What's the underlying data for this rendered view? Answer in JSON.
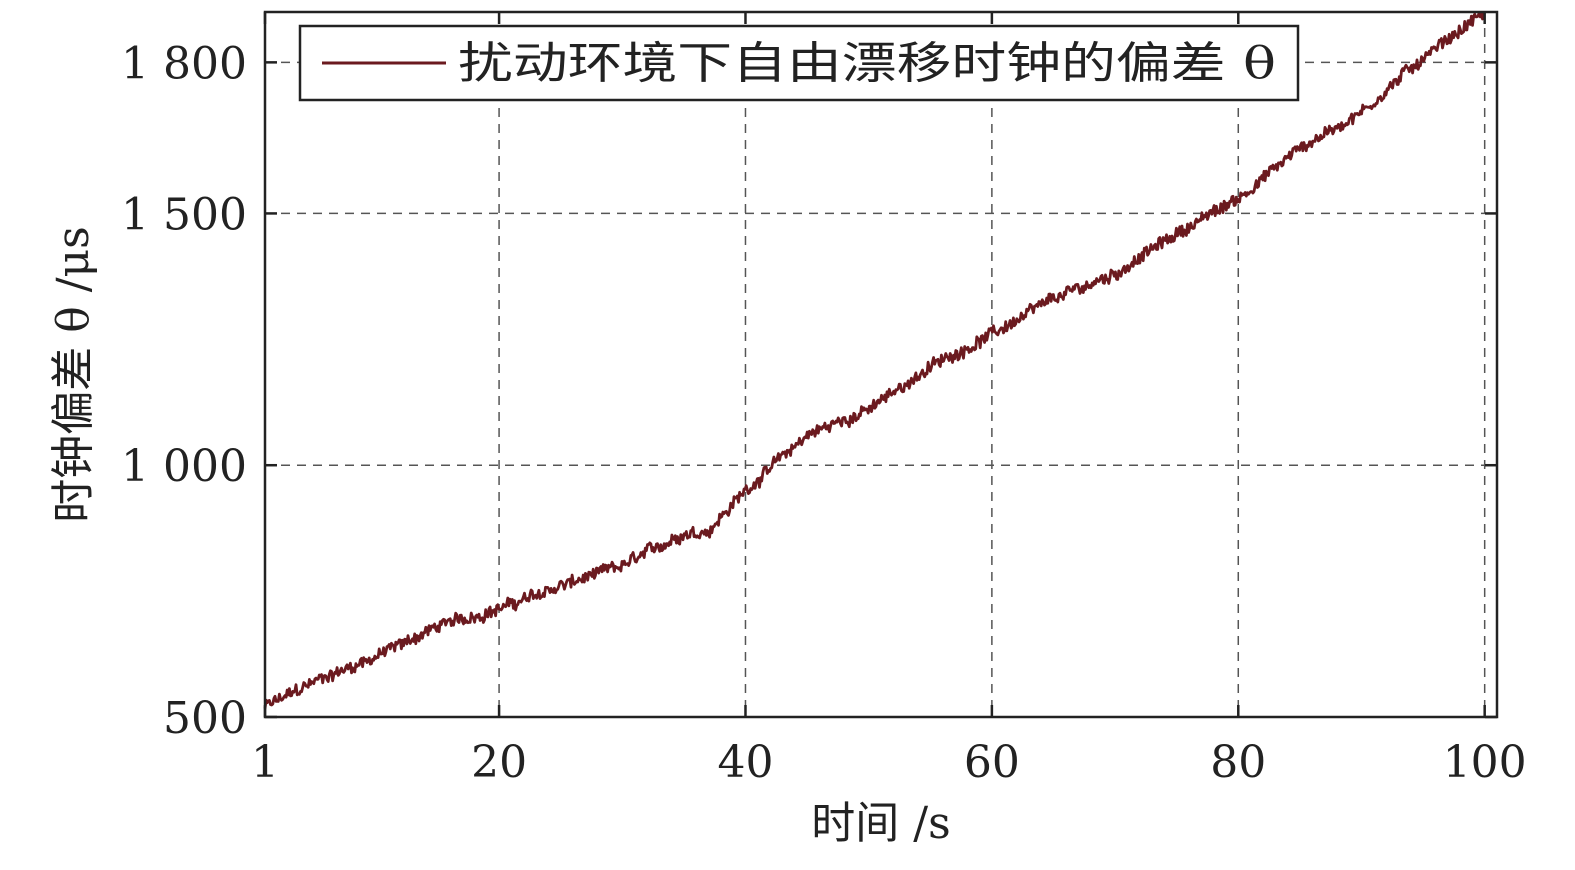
{
  "chart_data": {
    "type": "line",
    "xlabel": "时间 /s",
    "ylabel": "时钟偏差 θ /μs",
    "xlim": [
      1,
      101
    ],
    "ylim": [
      500,
      1900
    ],
    "xticks": [
      1,
      20,
      40,
      60,
      80,
      100
    ],
    "xtick_labels": [
      "1",
      "20",
      "40",
      "60",
      "80",
      "100"
    ],
    "yticks": [
      500,
      1000,
      1500,
      1800
    ],
    "ytick_labels": [
      "500",
      "1 000",
      "1 500",
      "1 800"
    ],
    "grid": true,
    "legend": {
      "placement": "top-left",
      "entries": [
        "扰动环境下自由漂移时钟的偏差 θ"
      ]
    },
    "colors": {
      "series": "#6b1a1f",
      "grid": "#555555",
      "axis": "#222222"
    },
    "series": [
      {
        "name": "扰动环境下自由漂移时钟的偏差 θ",
        "x": [
          1,
          5,
          10,
          15,
          20,
          25,
          30,
          35,
          37,
          40,
          45,
          50,
          55,
          60,
          65,
          70,
          75,
          80,
          85,
          90,
          95,
          100
        ],
        "y": [
          520,
          570,
          620,
          680,
          715,
          760,
          800,
          865,
          870,
          950,
          1060,
          1110,
          1195,
          1260,
          1330,
          1380,
          1460,
          1530,
          1630,
          1700,
          1810,
          1900
        ]
      }
    ]
  }
}
